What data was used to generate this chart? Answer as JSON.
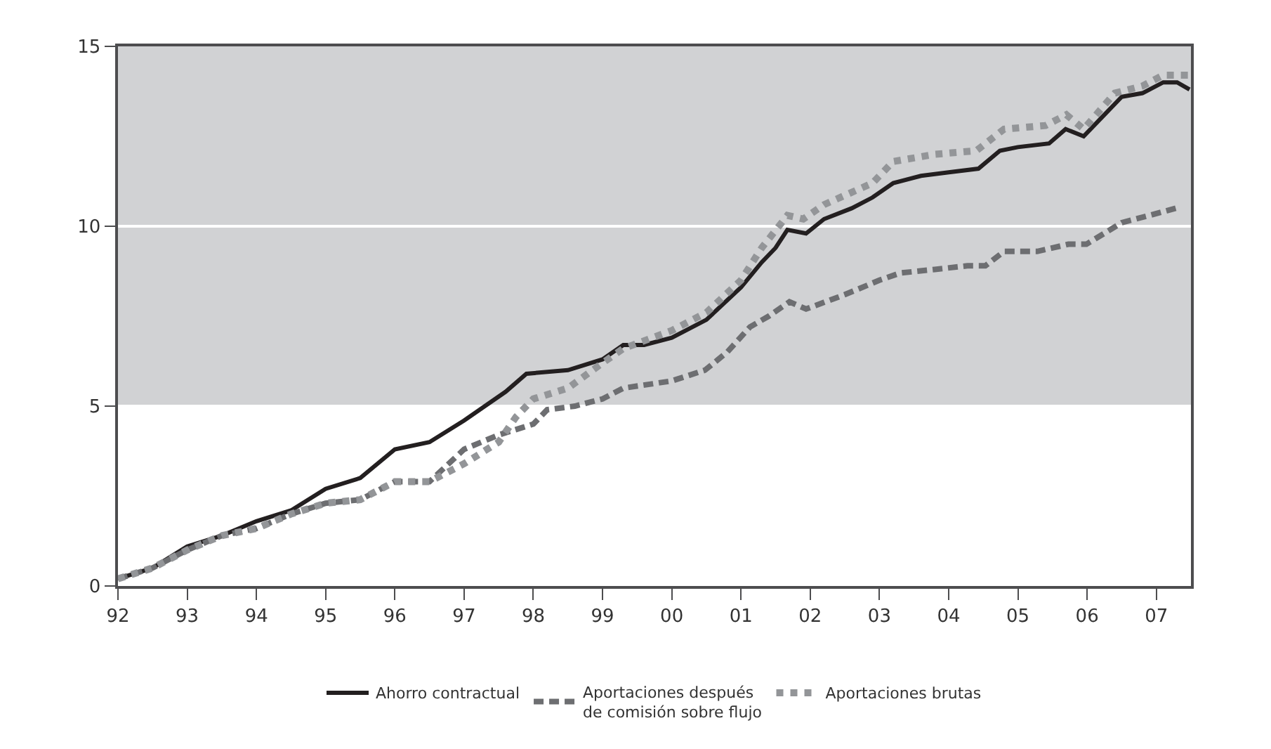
{
  "chart_data": {
    "type": "line",
    "xlim": [
      1992,
      2007.5
    ],
    "xticks": [
      {
        "value": 1992,
        "label": "92"
      },
      {
        "value": 1993,
        "label": "93"
      },
      {
        "value": 1994,
        "label": "94"
      },
      {
        "value": 1995,
        "label": "95"
      },
      {
        "value": 1996,
        "label": "96"
      },
      {
        "value": 1997,
        "label": "97"
      },
      {
        "value": 1998,
        "label": "98"
      },
      {
        "value": 1999,
        "label": "99"
      },
      {
        "value": 2000,
        "label": "00"
      },
      {
        "value": 2001,
        "label": "01"
      },
      {
        "value": 2002,
        "label": "02"
      },
      {
        "value": 2003,
        "label": "03"
      },
      {
        "value": 2004,
        "label": "04"
      },
      {
        "value": 2005,
        "label": "05"
      },
      {
        "value": 2006,
        "label": "06"
      },
      {
        "value": 2007,
        "label": "07"
      }
    ],
    "ylim": [
      0,
      15
    ],
    "yticks": [
      0,
      5,
      10,
      15
    ],
    "grid": "y",
    "legend": "bottom",
    "bands": [
      {
        "axis": "y",
        "from": 5,
        "to": 15,
        "color": "#d1d2d4"
      }
    ],
    "series": [
      {
        "name": "Ahorro contractual",
        "color": "#231f20",
        "line_style": "solid",
        "x": [
          1992,
          1992.5,
          1993,
          1993.5,
          1994,
          1994.5,
          1995,
          1995.5,
          1996,
          1996.5,
          1997,
          1997.3,
          1997.6,
          1997.9,
          1998.5,
          1999,
          1999.3,
          1999.6,
          2000,
          2000.5,
          2001,
          2001.3,
          2001.5,
          2001.67,
          2001.94,
          2002.2,
          2002.6,
          2002.9,
          2003.2,
          2003.6,
          2004,
          2004.43,
          2004.74,
          2005,
          2005.45,
          2005.69,
          2005.95,
          2006.2,
          2006.5,
          2006.8,
          2007.1,
          2007.3,
          2007.48
        ],
        "values": [
          0.2,
          0.5,
          1.1,
          1.4,
          1.8,
          2.1,
          2.7,
          3.0,
          3.8,
          4.0,
          4.6,
          5.0,
          5.4,
          5.9,
          6.0,
          6.3,
          6.7,
          6.7,
          6.9,
          7.4,
          8.3,
          9.0,
          9.4,
          9.9,
          9.8,
          10.2,
          10.5,
          10.8,
          11.2,
          11.4,
          11.5,
          11.6,
          12.1,
          12.2,
          12.3,
          12.7,
          12.5,
          13.0,
          13.6,
          13.7,
          14.0,
          14.0,
          13.8
        ]
      },
      {
        "name": "Aportaciones después\nde comisión sobre flujo",
        "color": "#6d6e71",
        "line_style": "dashed",
        "x": [
          1992,
          1992.5,
          1993,
          1993.5,
          1994,
          1994.5,
          1995,
          1995.5,
          1996,
          1996.5,
          1997,
          1997.5,
          1998,
          1998.2,
          1998.6,
          1999,
          1999.3,
          2000,
          2000.48,
          2000.8,
          2001.13,
          2001.4,
          2001.7,
          2001.94,
          2002.5,
          2003,
          2003.3,
          2003.8,
          2004.27,
          2004.53,
          2004.8,
          2005.28,
          2005.73,
          2005.99,
          2006.5,
          2006.9,
          2007.28
        ],
        "values": [
          0.2,
          0.5,
          1.0,
          1.4,
          1.6,
          2.0,
          2.3,
          2.4,
          2.9,
          2.9,
          3.8,
          4.2,
          4.5,
          4.9,
          5.0,
          5.2,
          5.5,
          5.7,
          6.0,
          6.5,
          7.2,
          7.5,
          7.9,
          7.7,
          8.1,
          8.5,
          8.7,
          8.8,
          8.9,
          8.9,
          9.3,
          9.3,
          9.5,
          9.5,
          10.1,
          10.3,
          10.5
        ]
      },
      {
        "name": "Aportaciones brutas",
        "color": "#939598",
        "line_style": "dotted",
        "x": [
          1992,
          1992.5,
          1993,
          1993.5,
          1994,
          1994.5,
          1995,
          1995.5,
          1996,
          1996.5,
          1997,
          1997.5,
          1997.75,
          1998,
          1998.5,
          1999,
          1999.3,
          2000,
          2000.5,
          2001,
          2001.3,
          2001.67,
          2001.9,
          2002.2,
          2002.9,
          2003.2,
          2003.8,
          2004.4,
          2004.8,
          2005.4,
          2005.7,
          2005.95,
          2006.4,
          2006.8,
          2007.1,
          2007.48
        ],
        "values": [
          0.2,
          0.5,
          1.0,
          1.4,
          1.6,
          2.0,
          2.3,
          2.4,
          2.9,
          2.9,
          3.4,
          4.0,
          4.7,
          5.2,
          5.5,
          6.2,
          6.6,
          7.1,
          7.6,
          8.5,
          9.4,
          10.3,
          10.2,
          10.6,
          11.2,
          11.8,
          12.0,
          12.1,
          12.7,
          12.8,
          13.1,
          12.7,
          13.7,
          13.9,
          14.2,
          14.2
        ]
      }
    ]
  }
}
